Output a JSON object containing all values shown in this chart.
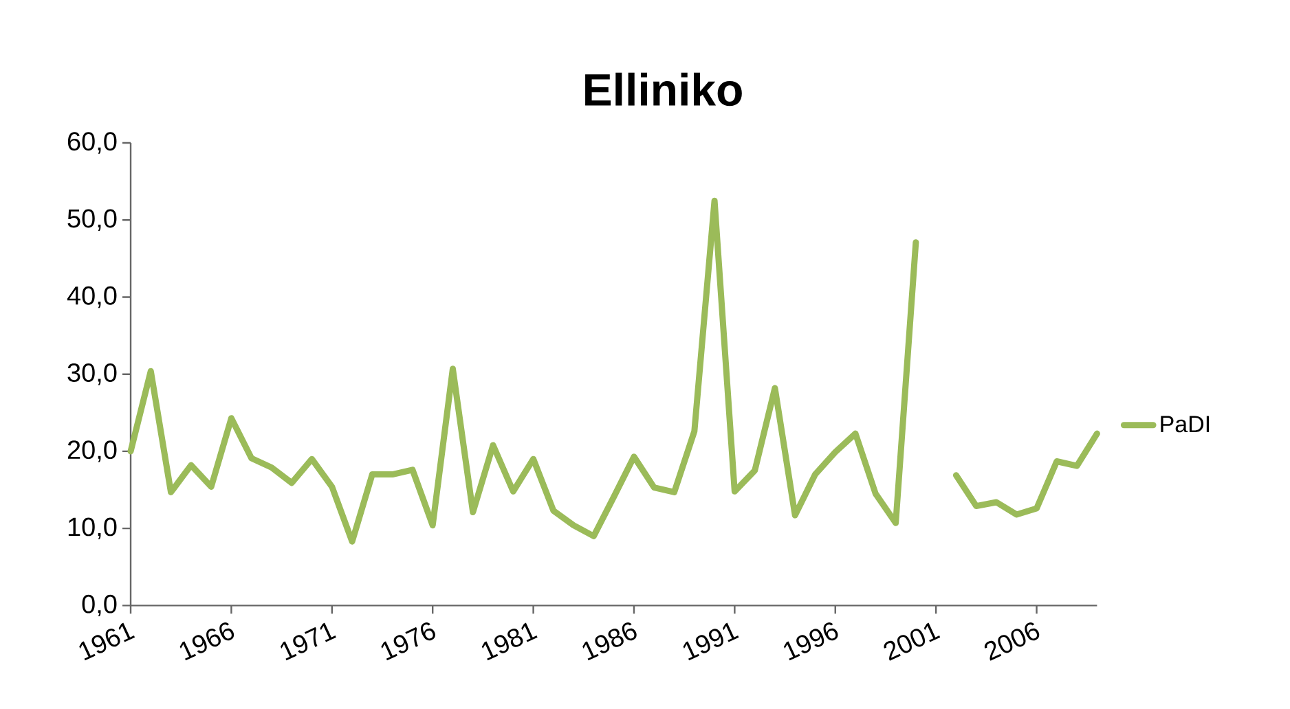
{
  "chart_data": {
    "type": "line",
    "title": "Elliniko",
    "categories": [
      "1961",
      null,
      null,
      null,
      null,
      "1966",
      null,
      null,
      null,
      null,
      "1971",
      null,
      null,
      null,
      null,
      "1976",
      null,
      null,
      null,
      null,
      "1981",
      null,
      null,
      null,
      null,
      "1986",
      null,
      null,
      null,
      null,
      "1991",
      null,
      null,
      null,
      null,
      "1996",
      null,
      null,
      null,
      null,
      "2001",
      null,
      null,
      null,
      null,
      "2006",
      null,
      null,
      null
    ],
    "series": [
      {
        "name": "PaDI",
        "color": "#9bbb59",
        "values": [
          20.0,
          30.4,
          14.7,
          18.2,
          15.4,
          24.3,
          19.1,
          17.9,
          15.9,
          19.0,
          15.4,
          8.3,
          17.0,
          17.0,
          17.6,
          10.4,
          30.7,
          12.1,
          20.8,
          14.8,
          19.0,
          12.3,
          10.4,
          9.0,
          14.1,
          19.3,
          15.3,
          14.7,
          22.6,
          52.5,
          14.8,
          17.5,
          28.2,
          11.7,
          17.0,
          19.9,
          22.3,
          14.5,
          10.7,
          47.1,
          null,
          16.9,
          12.9,
          13.4,
          11.8,
          12.6,
          18.7,
          18.1,
          22.3
        ]
      }
    ],
    "ylim": [
      0,
      60
    ],
    "yticks": [
      {
        "value": 0,
        "label": "0,0"
      },
      {
        "value": 10,
        "label": "10,0"
      },
      {
        "value": 20,
        "label": "20,0"
      },
      {
        "value": 30,
        "label": "30,0"
      },
      {
        "value": 40,
        "label": "40,0"
      },
      {
        "value": 50,
        "label": "50,0"
      },
      {
        "value": 60,
        "label": "60,0"
      }
    ],
    "grid": false,
    "legend": "right",
    "marker": "none",
    "line_style": "solid"
  }
}
